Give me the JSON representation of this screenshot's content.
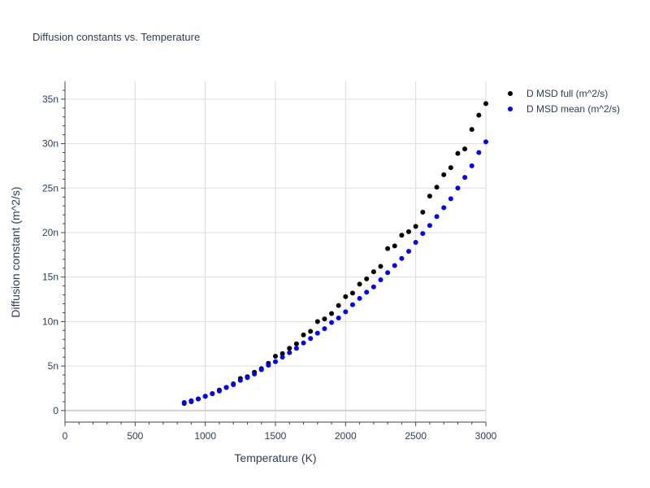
{
  "chart_data": {
    "type": "scatter",
    "title": "Diffusion constants vs. Temperature",
    "xlabel": "Temperature (K)",
    "ylabel": "Diffusion constant (m^2/s)",
    "xlim": [
      0,
      3000
    ],
    "ylim": [
      -1.3,
      37
    ],
    "x_ticks": [
      0,
      500,
      1000,
      1500,
      2000,
      2500,
      3000
    ],
    "x_tick_labels": [
      "0",
      "500",
      "1000",
      "1500",
      "2000",
      "2500",
      "3000"
    ],
    "y_ticks": [
      0,
      5,
      10,
      15,
      20,
      25,
      30,
      35
    ],
    "y_tick_labels": [
      "0",
      "5n",
      "10n",
      "15n",
      "20n",
      "25n",
      "30n",
      "35n"
    ],
    "y_unit_note": "values in units of 1e-9 (n)",
    "grid": true,
    "legend_position": "top-right",
    "x": [
      850,
      900,
      950,
      1000,
      1050,
      1100,
      1150,
      1200,
      1250,
      1300,
      1350,
      1400,
      1450,
      1500,
      1550,
      1600,
      1650,
      1700,
      1750,
      1800,
      1850,
      1900,
      1950,
      2000,
      2050,
      2100,
      2150,
      2200,
      2250,
      2300,
      2350,
      2400,
      2450,
      2500,
      2550,
      2600,
      2650,
      2700,
      2750,
      2800,
      2850,
      2900,
      2950,
      3000
    ],
    "series": [
      {
        "name": "D MSD full (m^2/s)",
        "color": "#000000",
        "values": [
          0.8,
          1.0,
          1.3,
          1.6,
          1.9,
          2.3,
          2.6,
          3.0,
          3.6,
          3.8,
          4.3,
          4.7,
          5.3,
          6.1,
          6.4,
          7.0,
          7.5,
          8.5,
          8.9,
          10.0,
          10.3,
          10.9,
          11.8,
          12.8,
          13.2,
          14.2,
          14.8,
          15.6,
          16.2,
          18.2,
          18.5,
          19.7,
          20.1,
          20.7,
          22.3,
          24.1,
          25.1,
          26.5,
          27.3,
          28.9,
          29.4,
          31.6,
          33.2,
          34.5
        ]
      },
      {
        "name": "D MSD mean (m^2/s)",
        "color": "#0000ff",
        "values": [
          0.9,
          1.1,
          1.3,
          1.6,
          1.9,
          2.2,
          2.6,
          2.9,
          3.4,
          3.7,
          4.1,
          4.6,
          5.1,
          5.5,
          6.0,
          6.5,
          7.0,
          7.6,
          8.1,
          8.7,
          9.2,
          9.9,
          10.4,
          11.1,
          11.9,
          12.6,
          13.3,
          13.9,
          14.7,
          15.5,
          16.3,
          17.1,
          17.9,
          18.9,
          19.9,
          20.8,
          21.8,
          22.8,
          23.8,
          25.0,
          26.2,
          27.5,
          29.0,
          30.2
        ]
      }
    ]
  }
}
